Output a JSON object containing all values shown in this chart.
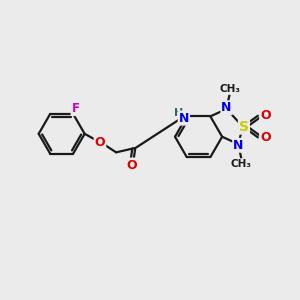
{
  "background_color": "#ebebeb",
  "bond_color": "#1a1a1a",
  "atom_colors": {
    "F": "#cc00cc",
    "O": "#dd0000",
    "N": "#0000ee",
    "NH": "#336666",
    "H": "#336666",
    "S": "#cccc00",
    "C": "#1a1a1a"
  }
}
